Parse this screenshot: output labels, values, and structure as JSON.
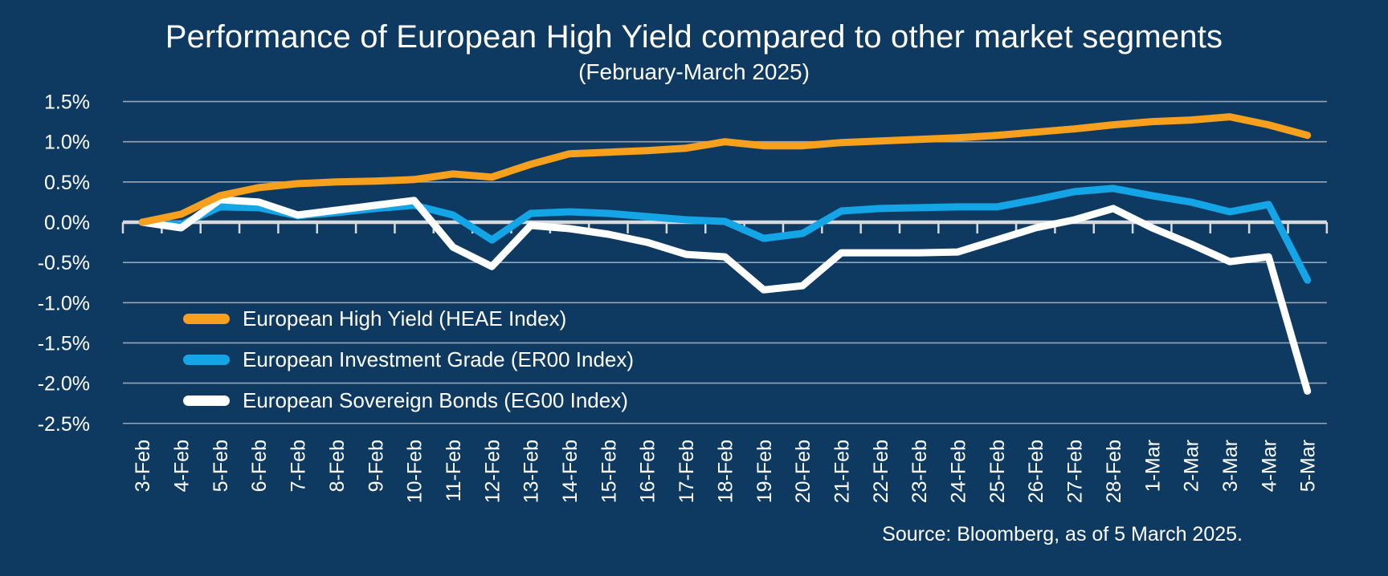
{
  "title": "Performance of European High Yield compared to other market segments",
  "subtitle": "(February-March 2025)",
  "source": "Source: Bloomberg, as of 5 March 2025.",
  "colors": {
    "background": "#0E3A62",
    "gridline": "#AEB9C3",
    "zero_axis": "#D6DADD",
    "text": "#FFFFFF",
    "high_yield_orange": "#F6A01E",
    "investment_grade_blue": "#14A5E6",
    "sovereign_white": "#FFFFFF"
  },
  "chart_data": {
    "type": "line",
    "title": "Performance of European High Yield compared to other market segments",
    "subtitle": "(February-March 2025)",
    "x": [
      "3-Feb",
      "4-Feb",
      "5-Feb",
      "6-Feb",
      "7-Feb",
      "8-Feb",
      "9-Feb",
      "10-Feb",
      "11-Feb",
      "12-Feb",
      "13-Feb",
      "14-Feb",
      "15-Feb",
      "16-Feb",
      "17-Feb",
      "18-Feb",
      "19-Feb",
      "20-Feb",
      "21-Feb",
      "22-Feb",
      "23-Feb",
      "24-Feb",
      "25-Feb",
      "26-Feb",
      "27-Feb",
      "28-Feb",
      "1-Mar",
      "2-Mar",
      "3-Mar",
      "4-Mar",
      "5-Mar"
    ],
    "series": [
      {
        "name": "European High Yield (HEAE Index)",
        "color": "#F6A01E",
        "values": [
          0.0,
          0.1,
          0.33,
          0.43,
          0.48,
          0.5,
          0.51,
          0.53,
          0.6,
          0.56,
          0.72,
          0.85,
          0.87,
          0.89,
          0.92,
          1.0,
          0.95,
          0.95,
          0.99,
          1.01,
          1.03,
          1.05,
          1.08,
          1.12,
          1.16,
          1.21,
          1.25,
          1.27,
          1.31,
          1.21,
          1.08
        ]
      },
      {
        "name": "European Investment Grade (ER00 Index)",
        "color": "#14A5E6",
        "values": [
          0.0,
          -0.03,
          0.19,
          0.18,
          0.08,
          0.12,
          0.17,
          0.21,
          0.09,
          -0.22,
          0.11,
          0.13,
          0.11,
          0.07,
          0.03,
          0.01,
          -0.2,
          -0.14,
          0.14,
          0.17,
          0.18,
          0.19,
          0.19,
          0.28,
          0.38,
          0.42,
          0.33,
          0.25,
          0.13,
          0.22,
          -0.72
        ]
      },
      {
        "name": "European Sovereign Bonds (EG00 Index)",
        "color": "#FFFFFF",
        "values": [
          0.0,
          -0.07,
          0.28,
          0.25,
          0.09,
          0.15,
          0.21,
          0.27,
          -0.31,
          -0.55,
          -0.04,
          -0.08,
          -0.15,
          -0.25,
          -0.4,
          -0.43,
          -0.84,
          -0.79,
          -0.38,
          -0.38,
          -0.38,
          -0.37,
          -0.22,
          -0.07,
          0.03,
          0.17,
          -0.07,
          -0.27,
          -0.49,
          -0.43,
          -2.1
        ]
      }
    ],
    "yticks": [
      1.5,
      1.0,
      0.5,
      0.0,
      -0.5,
      -1.0,
      -1.5,
      -2.0,
      -2.5
    ],
    "ytick_format": "percent_one_decimal",
    "ylim": [
      -2.5,
      1.5
    ],
    "xlabel": "",
    "ylabel": "",
    "grid": true,
    "legend_position": "inside-left"
  }
}
